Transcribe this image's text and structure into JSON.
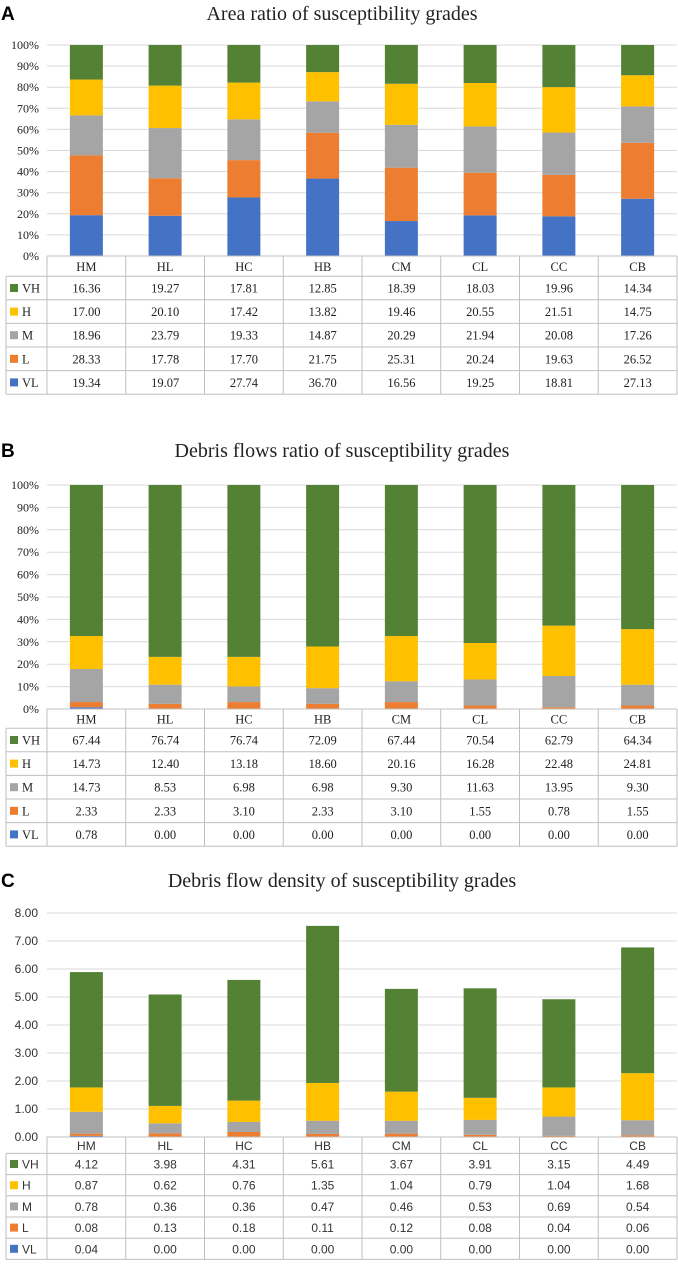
{
  "chart_data": [
    {
      "panel_label": "A",
      "type": "bar",
      "stacked": true,
      "title": "Area ratio of susceptibility grades",
      "categories": [
        "HM",
        "HL",
        "HC",
        "HB",
        "CM",
        "CL",
        "CC",
        "CB"
      ],
      "ylim": [
        0,
        100
      ],
      "yticks": [
        0,
        10,
        20,
        30,
        40,
        50,
        60,
        70,
        80,
        90,
        100
      ],
      "ytick_labels": [
        "0%",
        "10%",
        "20%",
        "30%",
        "40%",
        "50%",
        "60%",
        "70%",
        "80%",
        "90%",
        "100%"
      ],
      "grid": true,
      "legend": "data-table",
      "series": [
        {
          "name": "VL",
          "color": "#4472c4",
          "values": [
            "19.34",
            "19.07",
            "27.74",
            "36.70",
            "16.56",
            "19.25",
            "18.81",
            "27.13"
          ]
        },
        {
          "name": "L",
          "color": "#ed7d31",
          "values": [
            "28.33",
            "17.78",
            "17.70",
            "21.75",
            "25.31",
            "20.24",
            "19.63",
            "26.52"
          ]
        },
        {
          "name": "M",
          "color": "#a5a5a5",
          "values": [
            "18.96",
            "23.79",
            "19.33",
            "14.87",
            "20.29",
            "21.94",
            "20.08",
            "17.26"
          ]
        },
        {
          "name": "H",
          "color": "#ffc000",
          "values": [
            "17.00",
            "20.10",
            "17.42",
            "13.82",
            "19.46",
            "20.55",
            "21.51",
            "14.75"
          ]
        },
        {
          "name": "VH",
          "color": "#548235",
          "values": [
            "16.36",
            "19.27",
            "17.81",
            "12.85",
            "18.39",
            "18.03",
            "19.96",
            "14.34"
          ]
        }
      ]
    },
    {
      "panel_label": "B",
      "type": "bar",
      "stacked": true,
      "title": "Debris flows ratio of susceptibility grades",
      "categories": [
        "HM",
        "HL",
        "HC",
        "HB",
        "CM",
        "CL",
        "CC",
        "CB"
      ],
      "ylim": [
        0,
        100
      ],
      "yticks": [
        0,
        10,
        20,
        30,
        40,
        50,
        60,
        70,
        80,
        90,
        100
      ],
      "ytick_labels": [
        "0%",
        "10%",
        "20%",
        "30%",
        "40%",
        "50%",
        "60%",
        "70%",
        "80%",
        "90%",
        "100%"
      ],
      "grid": true,
      "legend": "data-table",
      "series": [
        {
          "name": "VL",
          "color": "#4472c4",
          "values": [
            "0.78",
            "0.00",
            "0.00",
            "0.00",
            "0.00",
            "0.00",
            "0.00",
            "0.00"
          ]
        },
        {
          "name": "L",
          "color": "#ed7d31",
          "values": [
            "2.33",
            "2.33",
            "3.10",
            "2.33",
            "3.10",
            "1.55",
            "0.78",
            "1.55"
          ]
        },
        {
          "name": "M",
          "color": "#a5a5a5",
          "values": [
            "14.73",
            "8.53",
            "6.98",
            "6.98",
            "9.30",
            "11.63",
            "13.95",
            "9.30"
          ]
        },
        {
          "name": "H",
          "color": "#ffc000",
          "values": [
            "14.73",
            "12.40",
            "13.18",
            "18.60",
            "20.16",
            "16.28",
            "22.48",
            "24.81"
          ]
        },
        {
          "name": "VH",
          "color": "#548235",
          "values": [
            "67.44",
            "76.74",
            "76.74",
            "72.09",
            "67.44",
            "70.54",
            "62.79",
            "64.34"
          ]
        }
      ]
    },
    {
      "panel_label": "C",
      "type": "bar",
      "stacked": true,
      "title": "Debris flow density of susceptibility grades",
      "categories": [
        "HM",
        "HL",
        "HC",
        "HB",
        "CM",
        "CL",
        "CC",
        "CB"
      ],
      "ylim": [
        0,
        8
      ],
      "yticks": [
        0,
        1,
        2,
        3,
        4,
        5,
        6,
        7,
        8
      ],
      "ytick_labels": [
        "0.00",
        "1.00",
        "2.00",
        "3.00",
        "4.00",
        "5.00",
        "6.00",
        "7.00",
        "8.00"
      ],
      "grid": true,
      "legend": "data-table",
      "series": [
        {
          "name": "VL",
          "color": "#4472c4",
          "values": [
            "0.04",
            "0.00",
            "0.00",
            "0.00",
            "0.00",
            "0.00",
            "0.00",
            "0.00"
          ]
        },
        {
          "name": "L",
          "color": "#ed7d31",
          "values": [
            "0.08",
            "0.13",
            "0.18",
            "0.11",
            "0.12",
            "0.08",
            "0.04",
            "0.06"
          ]
        },
        {
          "name": "M",
          "color": "#a5a5a5",
          "values": [
            "0.78",
            "0.36",
            "0.36",
            "0.47",
            "0.46",
            "0.53",
            "0.69",
            "0.54"
          ]
        },
        {
          "name": "H",
          "color": "#ffc000",
          "values": [
            "0.87",
            "0.62",
            "0.76",
            "1.35",
            "1.04",
            "0.79",
            "1.04",
            "1.68"
          ]
        },
        {
          "name": "VH",
          "color": "#548235",
          "values": [
            "4.12",
            "3.98",
            "4.31",
            "5.61",
            "3.67",
            "3.91",
            "3.15",
            "4.49"
          ]
        }
      ]
    }
  ]
}
